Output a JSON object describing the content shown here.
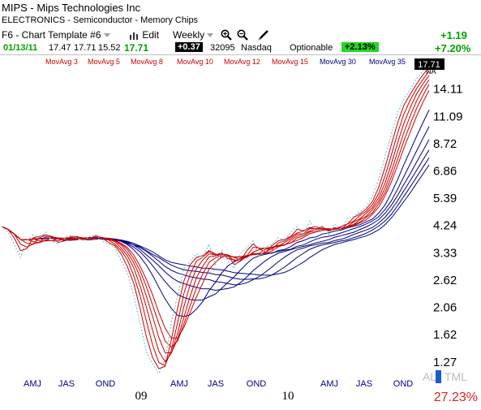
{
  "header": {
    "company": "MIPS - Mips Technologies Inc",
    "industry": "ELECTRONICS - Semiconductor - Memory Chips",
    "template": "F6 - Chart Template #6",
    "edit_label": "Edit",
    "period": "Weekly",
    "change_abs": "+1.19",
    "change_pct": "+7.20%"
  },
  "quote": {
    "date": "01/13/11",
    "open": "17.47",
    "high": "17.71",
    "low": "15.52",
    "close": "17.71",
    "change": "+0.37",
    "volume": "32095",
    "exchange": "Nasdaq",
    "optionable": "Optionable",
    "pct": "+2.13%"
  },
  "icons": [
    "bar-chart-icon",
    "zoom-in-icon",
    "zoom-out-icon",
    "pencil-icon"
  ],
  "chart_data": {
    "type": "line",
    "ma_labels": [
      "MovAvg 3",
      "MovAvg 5",
      "MovAvg 8",
      "MovAvg 10",
      "MovAvg 12",
      "MovAvg 15",
      "MovAvg 30",
      "MovAvg 35",
      "MovAvg"
    ],
    "ma_colors": [
      "#cc0000",
      "#cc0000",
      "#cc0000",
      "#cc0000",
      "#cc0000",
      "#cc0000",
      "#000080",
      "#000080",
      "#000080"
    ],
    "last_price": "17.71",
    "na_label": "NA",
    "y_ticks": [
      "14.11",
      "11.09",
      "8.72",
      "6.86",
      "5.39",
      "4.24",
      "3.33",
      "2.62",
      "2.06",
      "1.62",
      "1.27"
    ],
    "x_ticks": [
      "AMJ",
      "JAS",
      "OND",
      "AMJ",
      "JAS",
      "OND",
      "AMJ",
      "JAS",
      "OND"
    ],
    "year_labels": [
      "09",
      "10"
    ],
    "al_label": "AL",
    "tml_label": "TML",
    "footer_pct": "27.23%",
    "price_color": "#5fd0e0",
    "red_color": "#cc0000",
    "blue_color": "#000080",
    "price_series": [
      4.2,
      4.0,
      3.6,
      3.2,
      3.7,
      3.9,
      3.8,
      4.0,
      3.7,
      3.6,
      3.8,
      3.9,
      3.8,
      3.7,
      3.85,
      3.9,
      3.7,
      3.6,
      3.5,
      3.1,
      2.8,
      2.3,
      1.8,
      1.4,
      1.25,
      1.15,
      1.3,
      1.8,
      2.3,
      2.9,
      3.1,
      3.3,
      3.2,
      3.6,
      3.0,
      3.4,
      3.1,
      2.9,
      3.3,
      3.5,
      3.7,
      3.2,
      3.5,
      3.6,
      3.8,
      3.7,
      4.0,
      4.2,
      3.9,
      4.4,
      4.0,
      4.2,
      3.9,
      4.3,
      4.1,
      4.5,
      4.6,
      4.8,
      5.0,
      5.5,
      6.4,
      7.8,
      9.5,
      11.5,
      13.0,
      14.0,
      15.5,
      16.5,
      17.71
    ]
  }
}
